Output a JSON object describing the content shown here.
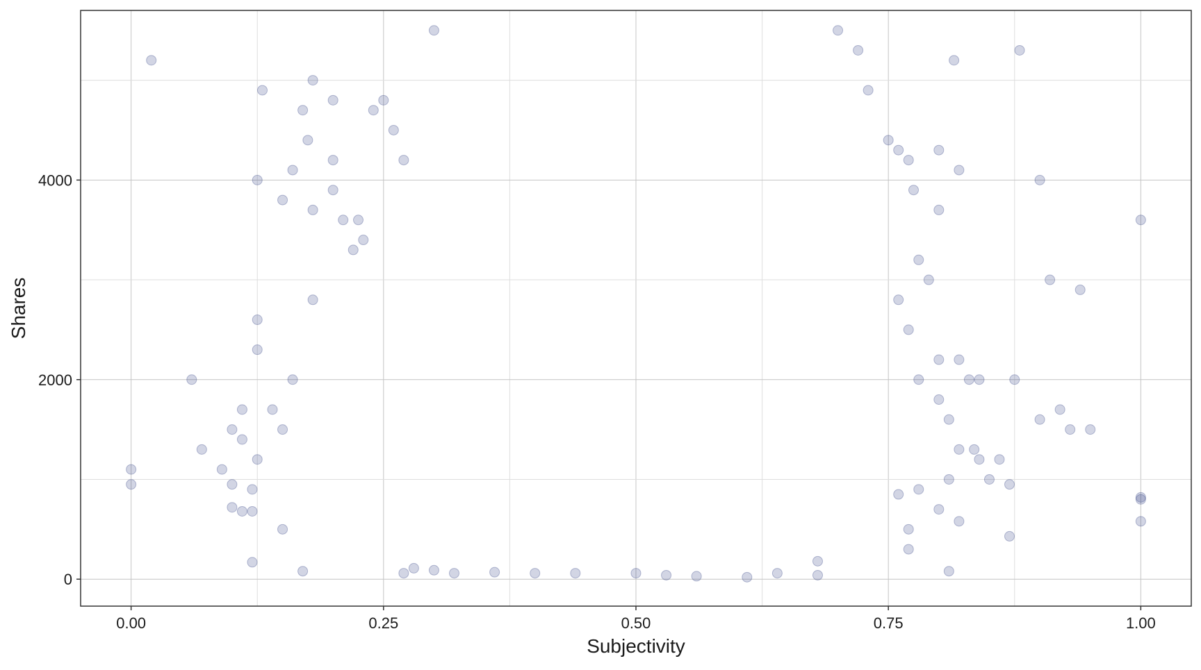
{
  "chart_data": {
    "type": "scatter",
    "title": "",
    "xlabel": "Subjectivity",
    "ylabel": "Shares",
    "xlim": [
      -0.05,
      1.05
    ],
    "ylim": [
      -270,
      5700
    ],
    "x_ticks": [
      0.0,
      0.25,
      0.5,
      0.75,
      1.0
    ],
    "x_tick_labels": [
      "0.00",
      "0.25",
      "0.50",
      "0.75",
      "1.00"
    ],
    "y_ticks": [
      0,
      2000,
      4000
    ],
    "y_tick_labels": [
      "0",
      "2000",
      "4000"
    ],
    "grid": true,
    "legend": "none",
    "point_color": "#1f2d78",
    "point_opacity": 0.2,
    "point_shape": "circle",
    "series": [
      {
        "points": [
          [
            0.0,
            1100
          ],
          [
            0.0,
            950
          ],
          [
            0.02,
            5200
          ],
          [
            0.06,
            2000
          ],
          [
            0.07,
            1300
          ],
          [
            0.09,
            1100
          ],
          [
            0.1,
            1500
          ],
          [
            0.1,
            950
          ],
          [
            0.1,
            720
          ],
          [
            0.11,
            1400
          ],
          [
            0.11,
            680
          ],
          [
            0.11,
            1700
          ],
          [
            0.12,
            170
          ],
          [
            0.12,
            900
          ],
          [
            0.12,
            680
          ],
          [
            0.125,
            4000
          ],
          [
            0.125,
            2600
          ],
          [
            0.125,
            2300
          ],
          [
            0.125,
            1200
          ],
          [
            0.13,
            4900
          ],
          [
            0.14,
            1700
          ],
          [
            0.15,
            3800
          ],
          [
            0.15,
            1500
          ],
          [
            0.15,
            500
          ],
          [
            0.16,
            4100
          ],
          [
            0.16,
            2000
          ],
          [
            0.17,
            4700
          ],
          [
            0.17,
            80
          ],
          [
            0.175,
            4400
          ],
          [
            0.18,
            5000
          ],
          [
            0.18,
            3700
          ],
          [
            0.18,
            2800
          ],
          [
            0.2,
            4800
          ],
          [
            0.2,
            4200
          ],
          [
            0.2,
            3900
          ],
          [
            0.21,
            3600
          ],
          [
            0.22,
            3300
          ],
          [
            0.225,
            3600
          ],
          [
            0.23,
            3400
          ],
          [
            0.24,
            4700
          ],
          [
            0.25,
            4800
          ],
          [
            0.26,
            4500
          ],
          [
            0.27,
            4200
          ],
          [
            0.27,
            60
          ],
          [
            0.28,
            110
          ],
          [
            0.3,
            5500
          ],
          [
            0.3,
            90
          ],
          [
            0.32,
            60
          ],
          [
            0.36,
            70
          ],
          [
            0.4,
            60
          ],
          [
            0.44,
            60
          ],
          [
            0.5,
            60
          ],
          [
            0.53,
            40
          ],
          [
            0.56,
            30
          ],
          [
            0.61,
            20
          ],
          [
            0.64,
            60
          ],
          [
            0.68,
            40
          ],
          [
            0.68,
            180
          ],
          [
            0.72,
            5300
          ],
          [
            0.7,
            5500
          ],
          [
            0.73,
            4900
          ],
          [
            0.75,
            4400
          ],
          [
            0.76,
            4300
          ],
          [
            0.77,
            4200
          ],
          [
            0.8,
            4300
          ],
          [
            0.82,
            4100
          ],
          [
            0.8,
            3700
          ],
          [
            0.78,
            3200
          ],
          [
            0.79,
            3000
          ],
          [
            0.76,
            2800
          ],
          [
            0.77,
            2500
          ],
          [
            0.8,
            2200
          ],
          [
            0.82,
            2200
          ],
          [
            0.83,
            2000
          ],
          [
            0.78,
            2000
          ],
          [
            0.8,
            1800
          ],
          [
            0.81,
            1600
          ],
          [
            0.82,
            1300
          ],
          [
            0.84,
            1200
          ],
          [
            0.86,
            1200
          ],
          [
            0.85,
            1000
          ],
          [
            0.87,
            950
          ],
          [
            0.87,
            430
          ],
          [
            0.81,
            1000
          ],
          [
            0.8,
            700
          ],
          [
            0.82,
            580
          ],
          [
            0.78,
            900
          ],
          [
            0.76,
            850
          ],
          [
            0.77,
            500
          ],
          [
            0.77,
            300
          ],
          [
            0.81,
            80
          ],
          [
            0.88,
            5300
          ],
          [
            0.9,
            4000
          ],
          [
            0.875,
            2000
          ],
          [
            0.9,
            1600
          ],
          [
            0.91,
            3000
          ],
          [
            0.92,
            1700
          ],
          [
            0.93,
            1500
          ],
          [
            0.94,
            2900
          ],
          [
            0.95,
            1500
          ],
          [
            1.0,
            3600
          ],
          [
            1.0,
            800
          ],
          [
            1.0,
            820
          ],
          [
            1.0,
            580
          ],
          [
            0.815,
            5200
          ],
          [
            0.775,
            3900
          ],
          [
            0.84,
            2000
          ],
          [
            0.835,
            1300
          ]
        ]
      }
    ]
  }
}
